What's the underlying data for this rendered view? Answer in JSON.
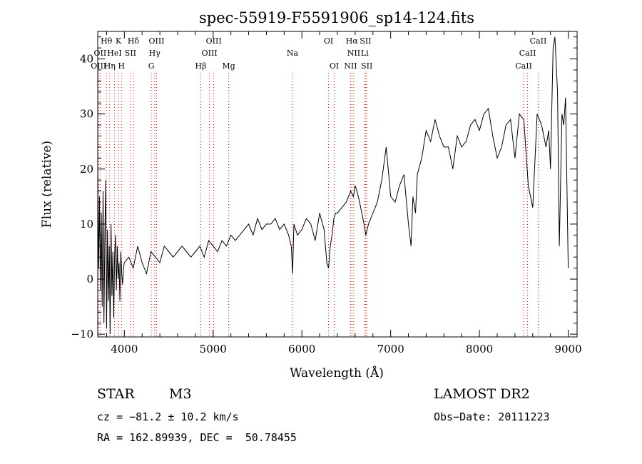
{
  "chart_data": {
    "type": "line",
    "title": "spec-55919-F5591906_sp14-124.fits",
    "xlabel": "Wavelength (Å)",
    "ylabel": "Flux (relative)",
    "xlim": [
      3700,
      9100
    ],
    "ylim": [
      -10.5,
      45
    ],
    "x_ticks": [
      4000,
      5000,
      6000,
      7000,
      8000,
      9000
    ],
    "y_ticks": [
      -10,
      0,
      10,
      20,
      30,
      40
    ],
    "grid": false,
    "line_color": "#000000",
    "marker_line_color": "#ff0000",
    "series": [
      {
        "x": [
          3700,
          3710,
          3720,
          3730,
          3740,
          3750,
          3760,
          3770,
          3780,
          3790,
          3800,
          3810,
          3820,
          3830,
          3840,
          3850,
          3860,
          3870,
          3880,
          3890,
          3900,
          3910,
          3920,
          3930,
          3940,
          3950,
          3960,
          3970,
          3980,
          3990,
          4000,
          4050,
          4100,
          4150,
          4200,
          4250,
          4300,
          4350,
          4400,
          4450,
          4500,
          4550,
          4600,
          4650,
          4700,
          4750,
          4800,
          4850,
          4900,
          4950,
          5000,
          5050,
          5100,
          5150,
          5200,
          5250,
          5300,
          5350,
          5400,
          5450,
          5500,
          5550,
          5600,
          5650,
          5700,
          5750,
          5800,
          5850,
          5880,
          5895,
          5910,
          5950,
          6000,
          6050,
          6100,
          6150,
          6200,
          6250,
          6280,
          6300,
          6320,
          6340,
          6360,
          6380,
          6400,
          6450,
          6500,
          6550,
          6580,
          6600,
          6620,
          6650,
          6700,
          6720,
          6750,
          6800,
          6850,
          6900,
          6950,
          7000,
          7050,
          7100,
          7150,
          7200,
          7230,
          7250,
          7280,
          7300,
          7350,
          7400,
          7450,
          7500,
          7550,
          7600,
          7650,
          7700,
          7750,
          7800,
          7850,
          7900,
          7950,
          8000,
          8050,
          8100,
          8150,
          8200,
          8250,
          8300,
          8350,
          8400,
          8450,
          8500,
          8550,
          8600,
          8650,
          8700,
          8750,
          8780,
          8800,
          8830,
          8850,
          8880,
          8900,
          8930,
          8950,
          8970,
          9000
        ],
        "y": [
          20,
          2,
          15,
          -2,
          12,
          -5,
          16,
          -8,
          8,
          18,
          -9,
          9,
          -4,
          6,
          -10,
          10,
          -3,
          5,
          -7,
          4,
          8,
          -2,
          6,
          0,
          3,
          -4,
          5,
          1,
          -1,
          2,
          3,
          4,
          2,
          6,
          3,
          1,
          5,
          4,
          3,
          6,
          5,
          4,
          5,
          6,
          5,
          4,
          5,
          6,
          4,
          7,
          6,
          5,
          7,
          6,
          8,
          7,
          8,
          9,
          10,
          8,
          11,
          9,
          10,
          10,
          11,
          9,
          10,
          8,
          6,
          1,
          10,
          8,
          9,
          11,
          10,
          7,
          12,
          9,
          3,
          2,
          6,
          8,
          11,
          12,
          12,
          13,
          14,
          16,
          15,
          17,
          16,
          14,
          10,
          8,
          10,
          12,
          14,
          18,
          24,
          15,
          14,
          17,
          19,
          10,
          6,
          15,
          12,
          19,
          22,
          27,
          25,
          29,
          26,
          24,
          24,
          20,
          26,
          24,
          25,
          28,
          29,
          27,
          30,
          31,
          26,
          22,
          24,
          28,
          29,
          22,
          30,
          29,
          17,
          13,
          30,
          28,
          24,
          27,
          20,
          42,
          44,
          34,
          6,
          30,
          28,
          33,
          2
        ]
      }
    ],
    "emission_lines": [
      {
        "label": "Hθ",
        "x": 3798,
        "row": 1
      },
      {
        "label": "K",
        "x": 3934,
        "row": 1
      },
      {
        "label": "Hδ",
        "x": 4102,
        "row": 1
      },
      {
        "label": "OIII",
        "x": 4363,
        "row": 1
      },
      {
        "label": "OIII",
        "x": 5007,
        "row": 1
      },
      {
        "label": "OI",
        "x": 6300,
        "row": 1
      },
      {
        "label": "Hα",
        "x": 6563,
        "row": 1
      },
      {
        "label": "SII",
        "x": 6717,
        "row": 1
      },
      {
        "label": "CaII",
        "x": 8662,
        "row": 1
      },
      {
        "label": "OII",
        "x": 3727,
        "row": 2
      },
      {
        "label": "HeI",
        "x": 3889,
        "row": 2
      },
      {
        "label": "SII",
        "x": 4069,
        "row": 2
      },
      {
        "label": "Hγ",
        "x": 4341,
        "row": 2
      },
      {
        "label": "OIII",
        "x": 4959,
        "row": 2
      },
      {
        "label": "Na",
        "x": 5893,
        "row": 2
      },
      {
        "label": "NII",
        "x": 6584,
        "row": 2
      },
      {
        "label": "Li",
        "x": 6708,
        "row": 2
      },
      {
        "label": "CaII",
        "x": 8542,
        "row": 2
      },
      {
        "label": "OIII",
        "x": 3710,
        "row": 3
      },
      {
        "label": "Hη",
        "x": 3835,
        "row": 3
      },
      {
        "label": "H",
        "x": 3968,
        "row": 3
      },
      {
        "label": "G",
        "x": 4304,
        "row": 3
      },
      {
        "label": "Hβ",
        "x": 4861,
        "row": 3
      },
      {
        "label": "Mg",
        "x": 5175,
        "row": 3
      },
      {
        "label": "OI",
        "x": 6364,
        "row": 3
      },
      {
        "label": "NII",
        "x": 6548,
        "row": 3
      },
      {
        "label": "SII",
        "x": 6731,
        "row": 3
      },
      {
        "label": "CaII",
        "x": 8498,
        "row": 3
      }
    ]
  },
  "footer": {
    "object_class": "STAR",
    "subclass": "M3",
    "survey": "LAMOST DR2",
    "redshift_text": "cz = −81.2 ± 10.2 km/s",
    "obs_date_text": "Obs−Date: 20111223",
    "coords_text": "RA = 162.89939, DEC =  50.78455"
  }
}
